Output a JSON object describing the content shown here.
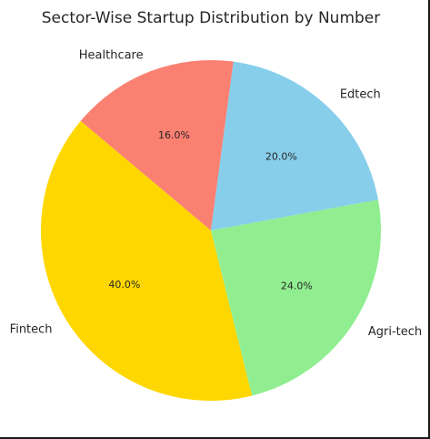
{
  "chart_data": {
    "type": "pie",
    "title": "Sector-Wise Startup Distribution by Number",
    "start_angle_deg": 140,
    "direction": "counterclockwise",
    "slices": [
      {
        "label": "Fintech",
        "value": 40.0,
        "pct_text": "40.0%",
        "color": "#FFD700"
      },
      {
        "label": "Agri-tech",
        "value": 24.0,
        "pct_text": "24.0%",
        "color": "#90EE90"
      },
      {
        "label": "Edtech",
        "value": 20.0,
        "pct_text": "20.0%",
        "color": "#87CEEB"
      },
      {
        "label": "Healthcare",
        "value": 16.0,
        "pct_text": "16.0%",
        "color": "#FA8072"
      }
    ]
  }
}
